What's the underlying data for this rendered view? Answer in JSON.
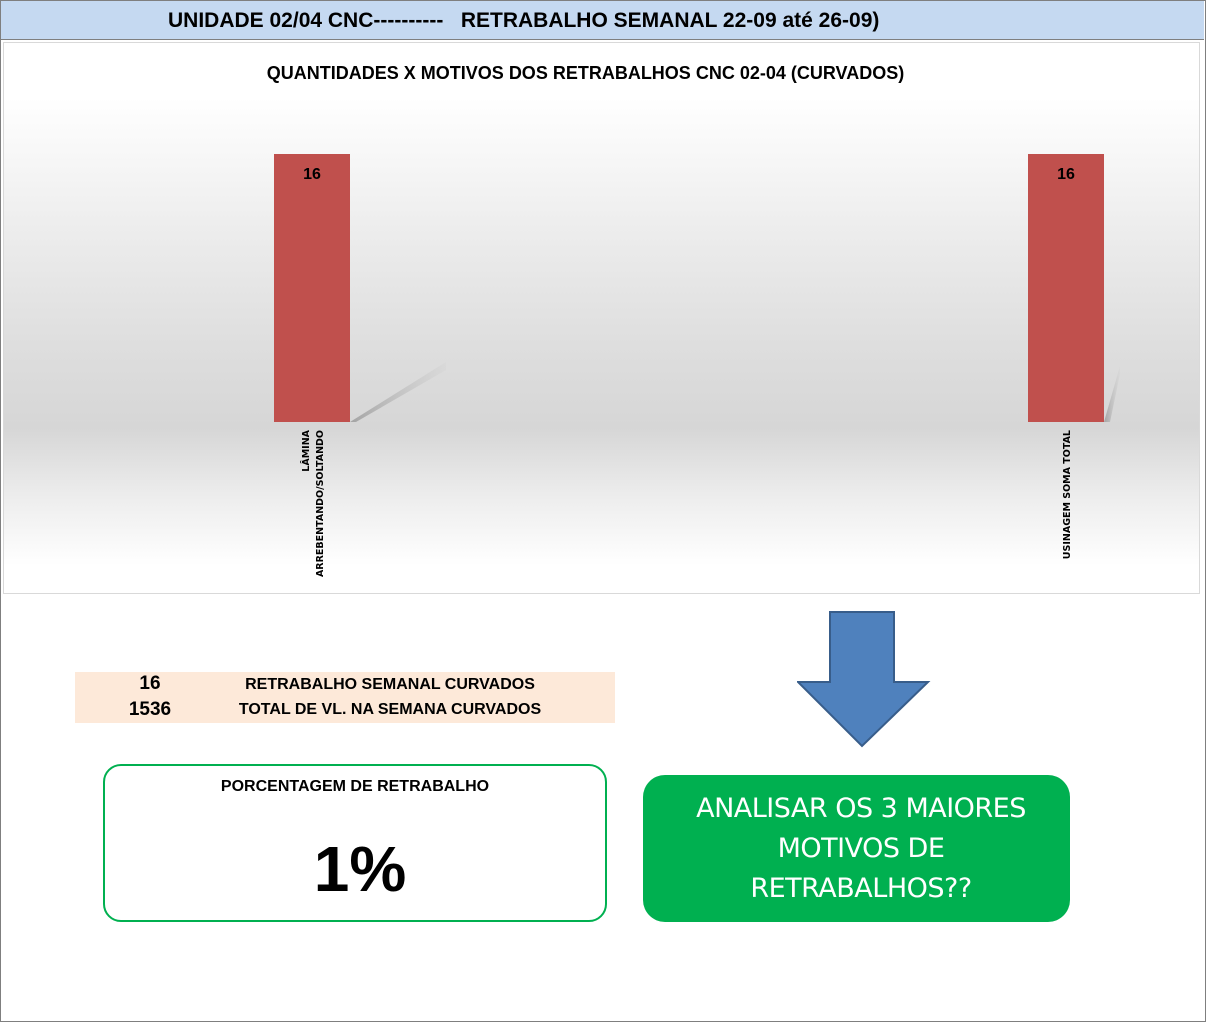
{
  "header": {
    "title": "UNIDADE 02/04 CNC----------   RETRABALHO SEMANAL 22-09 até 26-09)"
  },
  "chart_data": {
    "type": "bar",
    "title": "QUANTIDADES X MOTIVOS DOS RETRABALHOS CNC 02-04 (CURVADOS)",
    "categories": [
      "LÂMINA ARREBENTANDO/SOLTANDO",
      "USINAGEM SOMA TOTAL"
    ],
    "category_lines": [
      [
        "LÂMINA",
        "ARREBENTANDO/SOLTANDO"
      ],
      [
        "USINAGEM SOMA TOTAL"
      ]
    ],
    "values": [
      16,
      16
    ],
    "data_labels": [
      "16",
      "16"
    ],
    "ylim": [
      0,
      16
    ],
    "grid": false,
    "legend": false,
    "bar_color": "#c0504d"
  },
  "summary": {
    "rows": [
      {
        "value": "16",
        "label": "RETRABALHO SEMANAL CURVADOS"
      },
      {
        "value": "1536",
        "label": "TOTAL DE VL. NA SEMANA CURVADOS"
      }
    ]
  },
  "percentage": {
    "label": "PORCENTAGEM DE RETRABALHO",
    "value": "1%"
  },
  "callout": {
    "lines": [
      "ANALISAR OS 3 MAIORES",
      "MOTIVOS DE",
      "RETRABALHOS??"
    ]
  },
  "colors": {
    "header_bg": "#c5d9f1",
    "bar": "#c0504d",
    "summary_bg": "#fde9d9",
    "accent_green": "#00b050",
    "arrow_blue": "#4f81bd"
  },
  "icons": {
    "arrow": "down-arrow-icon"
  }
}
